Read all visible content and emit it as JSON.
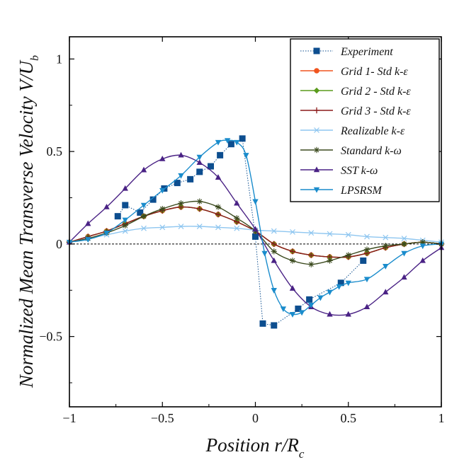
{
  "chart_data": {
    "type": "line",
    "xlabel": "Position r/R",
    "xlabel_sub": "c",
    "ylabel": "Normalized Mean Transverse Velocity V/U",
    "ylabel_sub": "b",
    "xlim": [
      -1,
      1
    ],
    "ylim": [
      -0.88,
      1.12
    ],
    "xticks": [
      -1,
      -0.5,
      0,
      0.5,
      1
    ],
    "yticks": [
      -0.5,
      0,
      0.5,
      1
    ],
    "xtick_labels": [
      "−1",
      "−0.5",
      "0",
      "0.5",
      "1"
    ],
    "ytick_labels": [
      "−0.5",
      "0",
      "0.5",
      "1"
    ],
    "zero_line": true,
    "series": [
      {
        "name": "Experiment",
        "color": "#0d4e8f",
        "marker": "square",
        "line": "dotted",
        "x": [
          -0.74,
          -0.7,
          -0.62,
          -0.55,
          -0.49,
          -0.42,
          -0.35,
          -0.3,
          -0.24,
          -0.19,
          -0.13,
          -0.07,
          0.0,
          0.04,
          0.1,
          0.23,
          0.29,
          0.46,
          0.58
        ],
        "y": [
          0.15,
          0.21,
          0.17,
          0.24,
          0.3,
          0.33,
          0.35,
          0.39,
          0.42,
          0.48,
          0.54,
          0.57,
          0.04,
          -0.43,
          -0.44,
          -0.35,
          -0.3,
          -0.21,
          -0.09
        ]
      },
      {
        "name": "Grid 1- Std k-ε",
        "color": "#f0541e",
        "marker": "circle",
        "line": "solid",
        "x": [
          -1,
          -0.9,
          -0.8,
          -0.7,
          -0.6,
          -0.5,
          -0.4,
          -0.3,
          -0.2,
          -0.1,
          0.0,
          0.1,
          0.2,
          0.3,
          0.4,
          0.5,
          0.6,
          0.7,
          0.8,
          0.9,
          1.0
        ],
        "y": [
          0.01,
          0.04,
          0.07,
          0.11,
          0.15,
          0.18,
          0.2,
          0.19,
          0.16,
          0.12,
          0.07,
          0.0,
          -0.04,
          -0.06,
          -0.07,
          -0.07,
          -0.05,
          -0.02,
          0.0,
          0.01,
          0.0
        ]
      },
      {
        "name": "Grid 2 - Std k-ε",
        "color": "#5a9b1c",
        "marker": "diamond",
        "line": "solid",
        "x": [
          -1,
          -0.9,
          -0.8,
          -0.7,
          -0.6,
          -0.5,
          -0.4,
          -0.3,
          -0.2,
          -0.1,
          0.0,
          0.1,
          0.2,
          0.3,
          0.4,
          0.5,
          0.6,
          0.7,
          0.8,
          0.9,
          1.0
        ],
        "y": [
          0.01,
          0.04,
          0.07,
          0.11,
          0.15,
          0.18,
          0.2,
          0.19,
          0.16,
          0.12,
          0.07,
          0.0,
          -0.04,
          -0.06,
          -0.07,
          -0.07,
          -0.05,
          -0.02,
          0.0,
          0.01,
          0.0
        ]
      },
      {
        "name": "Grid 3 - Std k-ε",
        "color": "#8b1a1a",
        "marker": "plus",
        "line": "solid",
        "x": [
          -1,
          -0.9,
          -0.8,
          -0.7,
          -0.6,
          -0.5,
          -0.4,
          -0.3,
          -0.2,
          -0.1,
          0.0,
          0.1,
          0.2,
          0.3,
          0.4,
          0.5,
          0.6,
          0.7,
          0.8,
          0.9,
          1.0
        ],
        "y": [
          0.01,
          0.04,
          0.07,
          0.11,
          0.15,
          0.18,
          0.2,
          0.19,
          0.16,
          0.12,
          0.07,
          0.0,
          -0.04,
          -0.06,
          -0.07,
          -0.07,
          -0.05,
          -0.02,
          0.0,
          0.01,
          0.0
        ]
      },
      {
        "name": "Realizable k-ε",
        "color": "#8ec6f0",
        "marker": "x",
        "line": "solid",
        "x": [
          -1,
          -0.9,
          -0.8,
          -0.7,
          -0.6,
          -0.5,
          -0.4,
          -0.3,
          -0.2,
          -0.1,
          0.0,
          0.1,
          0.2,
          0.3,
          0.4,
          0.5,
          0.6,
          0.7,
          0.8,
          0.9,
          1.0
        ],
        "y": [
          0.01,
          0.03,
          0.05,
          0.07,
          0.085,
          0.09,
          0.095,
          0.095,
          0.09,
          0.085,
          0.075,
          0.07,
          0.065,
          0.06,
          0.055,
          0.05,
          0.04,
          0.035,
          0.03,
          0.02,
          0.01
        ]
      },
      {
        "name": "Standard k-ω",
        "color": "#3b4a1e",
        "marker": "asterisk",
        "line": "solid",
        "x": [
          -1,
          -0.9,
          -0.8,
          -0.7,
          -0.6,
          -0.5,
          -0.4,
          -0.3,
          -0.2,
          -0.1,
          0.0,
          0.1,
          0.2,
          0.3,
          0.4,
          0.5,
          0.6,
          0.7,
          0.8,
          0.9,
          1.0
        ],
        "y": [
          0.01,
          0.03,
          0.06,
          0.1,
          0.15,
          0.19,
          0.22,
          0.23,
          0.2,
          0.14,
          0.07,
          -0.04,
          -0.09,
          -0.11,
          -0.09,
          -0.06,
          -0.03,
          -0.01,
          0.0,
          0.01,
          0.0
        ]
      },
      {
        "name": "SST k-ω",
        "color": "#4a2285",
        "marker": "triangle-up",
        "line": "solid",
        "x": [
          -1,
          -0.9,
          -0.8,
          -0.7,
          -0.6,
          -0.5,
          -0.4,
          -0.3,
          -0.2,
          -0.1,
          0.0,
          0.1,
          0.2,
          0.3,
          0.4,
          0.5,
          0.6,
          0.7,
          0.8,
          0.9,
          1.0
        ],
        "y": [
          0.01,
          0.11,
          0.2,
          0.3,
          0.4,
          0.46,
          0.48,
          0.44,
          0.36,
          0.22,
          0.08,
          -0.09,
          -0.24,
          -0.34,
          -0.38,
          -0.38,
          -0.34,
          -0.26,
          -0.18,
          -0.09,
          -0.02
        ]
      },
      {
        "name": "LPSRSM",
        "color": "#1a8ccc",
        "marker": "triangle-down",
        "line": "solid",
        "x": [
          -1,
          -0.9,
          -0.8,
          -0.7,
          -0.6,
          -0.5,
          -0.4,
          -0.3,
          -0.2,
          -0.15,
          -0.1,
          -0.05,
          0.0,
          0.05,
          0.1,
          0.15,
          0.2,
          0.25,
          0.3,
          0.35,
          0.4,
          0.45,
          0.5,
          0.6,
          0.7,
          0.8,
          0.9,
          1.0
        ],
        "y": [
          0.01,
          0.025,
          0.06,
          0.13,
          0.21,
          0.29,
          0.37,
          0.47,
          0.55,
          0.56,
          0.55,
          0.48,
          0.23,
          -0.05,
          -0.25,
          -0.35,
          -0.38,
          -0.37,
          -0.33,
          -0.29,
          -0.26,
          -0.23,
          -0.21,
          -0.19,
          -0.12,
          -0.05,
          -0.01,
          0.0
        ]
      }
    ]
  }
}
